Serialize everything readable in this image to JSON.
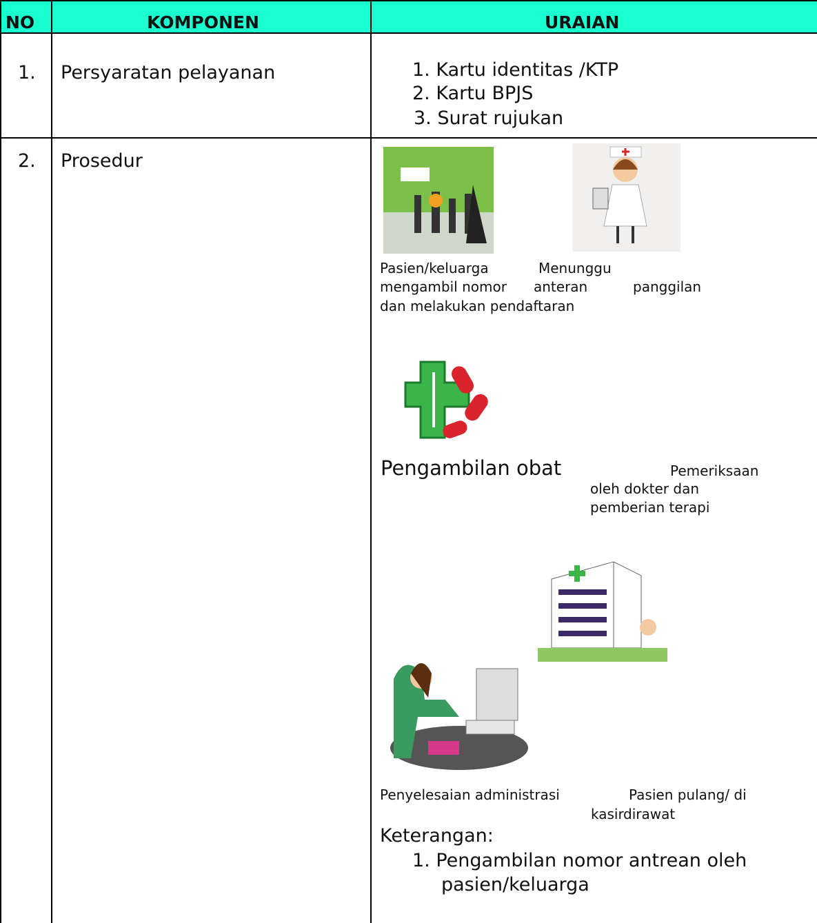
{
  "header": {
    "no": "NO",
    "komponen": "KOMPONEN",
    "uraian": "URAIAN"
  },
  "rows": [
    {
      "no": "1.",
      "komponen": "Persyaratan pelayanan",
      "uraian": [
        "1. Kartu identitas /KTP",
        "2. Kartu BPJS",
        "3. Surat  rujukan"
      ]
    },
    {
      "no": "2.",
      "komponen": "Prosedur",
      "captions": {
        "registration": [
          "Pasien/keluarga",
          "mengambil nomor",
          "dan melakukan pendaftaran"
        ],
        "waiting": [
          "Menunggu",
          "anteran",
          "panggilan"
        ],
        "medicine": "Pengambilan  obat",
        "examination": [
          "Pemeriksaan",
          "oleh dokter dan",
          "pemberian terapi"
        ],
        "cashier": [
          "Penyelesaian   administrasi",
          "kasir"
        ],
        "discharge": [
          "Pasien pulang/ di",
          "dirawat"
        ]
      },
      "keterangan": {
        "title": "Keterangan:",
        "items": [
          [
            "1. Pengambilan  nomor  antrean  oleh",
            "pasien/keluarga"
          ]
        ]
      }
    }
  ]
}
